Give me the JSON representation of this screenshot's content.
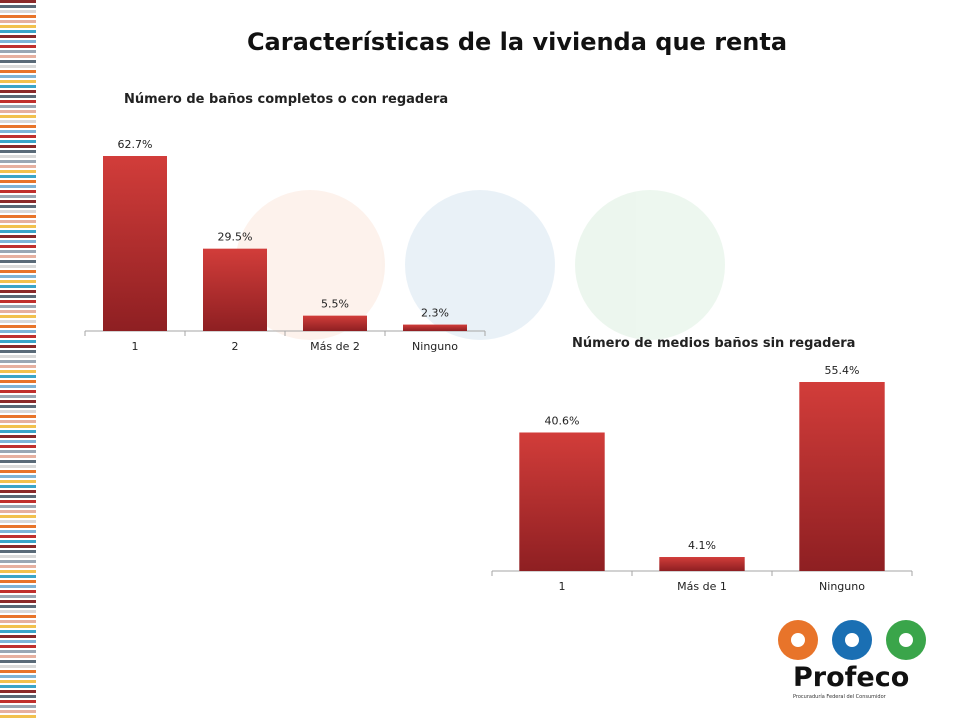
{
  "page": {
    "title": "Características de la vivienda que renta"
  },
  "chart_data": [
    {
      "type": "bar",
      "title": "Número de  baños completos o con regadera",
      "categories": [
        "1",
        "2",
        "Más de 2",
        "Ninguno"
      ],
      "values": [
        62.7,
        29.5,
        5.5,
        2.3
      ],
      "value_labels": [
        "62.7%",
        "29.5%",
        "5.5%",
        "2.3%"
      ],
      "unit": "%",
      "ylim": [
        0,
        62.7
      ],
      "grid": false,
      "bar_color": "#c0302e"
    },
    {
      "type": "bar",
      "title": "Número de  medios baños sin regadera",
      "categories": [
        "1",
        "Más de 1",
        "Ninguno"
      ],
      "values": [
        40.6,
        4.1,
        55.4
      ],
      "value_labels": [
        "40.6%",
        "4.1%",
        "55.4%"
      ],
      "unit": "%",
      "ylim": [
        0,
        55.4
      ],
      "grid": false,
      "bar_color": "#c0302e"
    }
  ],
  "logo": {
    "word": "Profeco",
    "subtitle": "Procuraduría Federal del Consumidor",
    "colors": [
      "#e8742a",
      "#1a6fb3",
      "#3aa54a"
    ]
  }
}
